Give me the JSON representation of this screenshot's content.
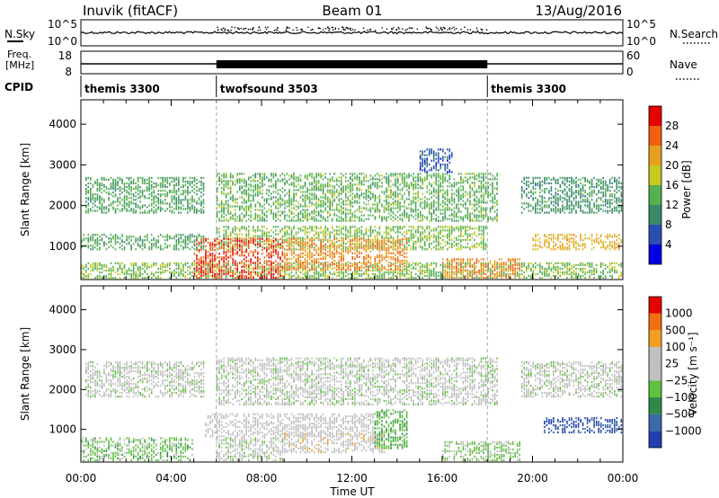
{
  "header": {
    "station": "Inuvik (fitACF)",
    "beam": "Beam 01",
    "date": "13/Aug/2016"
  },
  "noise_panel": {
    "left_label": "N.Sky",
    "left_ticks": [
      "10^5",
      "10^0"
    ],
    "right_label": "N.Search",
    "right_ticks": [
      "10^5",
      "10^0"
    ]
  },
  "freq_panel": {
    "left_label_1": "Freq.",
    "left_label_2": "[MHz]",
    "left_ticks": [
      "18",
      "8"
    ],
    "right_label": "Nave",
    "right_ticks": [
      "60",
      "0"
    ]
  },
  "cpid_panel": {
    "label": "CPID",
    "segments": [
      {
        "name": "themis 3300",
        "start_hour": 0,
        "end_hour": 6
      },
      {
        "name": "twofsound 3503",
        "start_hour": 6,
        "end_hour": 18
      },
      {
        "name": "themis 3300",
        "start_hour": 18,
        "end_hour": 24
      }
    ]
  },
  "colors": {
    "power_scale": [
      "#0000e6",
      "#2a4fb0",
      "#3a8a6a",
      "#55b050",
      "#c8c820",
      "#e8a020",
      "#f06010",
      "#e60000"
    ],
    "velocity_scale": [
      "#2040b0",
      "#3a6aa8",
      "#2f8a4a",
      "#60c040",
      "#c0c0c0",
      "#c0c0c0",
      "#f0a020",
      "#f07010",
      "#e60000"
    ]
  },
  "chart_data": [
    {
      "type": "heatmap",
      "panel": "power",
      "xlabel": "Time UT",
      "ylabel": "Slant Range [km]",
      "x_ticks": [
        "00:00",
        "04:00",
        "08:00",
        "12:00",
        "16:00",
        "20:00",
        "00:00"
      ],
      "xlim_hours": [
        0,
        24
      ],
      "y_ticks": [
        "1000",
        "2000",
        "3000",
        "4000"
      ],
      "ylim_km": [
        180,
        4600
      ],
      "colorbar_label": "Power [dB]",
      "colorbar_ticks": [
        "28",
        "24",
        "20",
        "16",
        "12",
        "8",
        "4"
      ],
      "colorbar_range": [
        0,
        30
      ],
      "scatter_bands": [
        {
          "t0": 0.0,
          "t1": 24.0,
          "r0": 200,
          "r1": 600,
          "v": 14
        },
        {
          "t0": 0.2,
          "t1": 5.5,
          "r0": 1800,
          "r1": 2700,
          "v": 12
        },
        {
          "t0": 6.0,
          "t1": 18.5,
          "r0": 1600,
          "r1": 2800,
          "v": 13
        },
        {
          "t0": 6.0,
          "t1": 18.0,
          "r0": 900,
          "r1": 1500,
          "v": 14
        },
        {
          "t0": 5.0,
          "t1": 9.0,
          "r0": 200,
          "r1": 1200,
          "v": 26
        },
        {
          "t0": 9.0,
          "t1": 14.5,
          "r0": 400,
          "r1": 1200,
          "v": 22
        },
        {
          "t0": 16.0,
          "t1": 19.5,
          "r0": 200,
          "r1": 700,
          "v": 22
        },
        {
          "t0": 20.0,
          "t1": 24.0,
          "r0": 900,
          "r1": 1300,
          "v": 20
        },
        {
          "t0": 19.5,
          "t1": 24.0,
          "r0": 1800,
          "r1": 2700,
          "v": 10
        },
        {
          "t0": 0.0,
          "t1": 5.5,
          "r0": 900,
          "r1": 1300,
          "v": 12
        },
        {
          "t0": 15.0,
          "t1": 16.5,
          "r0": 2800,
          "r1": 3400,
          "v": 6
        }
      ]
    },
    {
      "type": "heatmap",
      "panel": "velocity",
      "xlabel": "Time UT",
      "ylabel": "Slant Range [km]",
      "x_ticks": [
        "00:00",
        "04:00",
        "08:00",
        "12:00",
        "16:00",
        "20:00",
        "00:00"
      ],
      "xlim_hours": [
        0,
        24
      ],
      "y_ticks": [
        "1000",
        "2000",
        "3000",
        "4000"
      ],
      "ylim_km": [
        180,
        4600
      ],
      "colorbar_label": "Velocity [m s⁻¹]",
      "colorbar_ticks": [
        "1000",
        "500",
        "100",
        "25",
        "−25",
        "−100",
        "−500",
        "−1000"
      ],
      "colorbar_range": [
        -1000,
        1000
      ],
      "scatter_bands": [
        {
          "t0": 0.2,
          "t1": 5.5,
          "r0": 1800,
          "r1": 2700,
          "v": 0
        },
        {
          "t0": 6.0,
          "t1": 18.5,
          "r0": 1600,
          "r1": 2800,
          "v": 0
        },
        {
          "t0": 0.0,
          "t1": 5.0,
          "r0": 200,
          "r1": 800,
          "v": -200
        },
        {
          "t0": 5.5,
          "t1": 13.0,
          "r0": 800,
          "r1": 1400,
          "v": 120
        },
        {
          "t0": 9.0,
          "t1": 13.5,
          "r0": 400,
          "r1": 900,
          "v": 200
        },
        {
          "t0": 13.0,
          "t1": 14.5,
          "r0": 500,
          "r1": 1500,
          "v": -300
        },
        {
          "t0": 16.0,
          "t1": 19.5,
          "r0": 200,
          "r1": 700,
          "v": -150
        },
        {
          "t0": 20.5,
          "t1": 24.0,
          "r0": 900,
          "r1": 1300,
          "v": -800
        },
        {
          "t0": 19.5,
          "t1": 24.0,
          "r0": 1800,
          "r1": 2700,
          "v": 0
        },
        {
          "t0": 6.0,
          "t1": 9.0,
          "r0": 200,
          "r1": 800,
          "v": 0
        }
      ]
    }
  ]
}
